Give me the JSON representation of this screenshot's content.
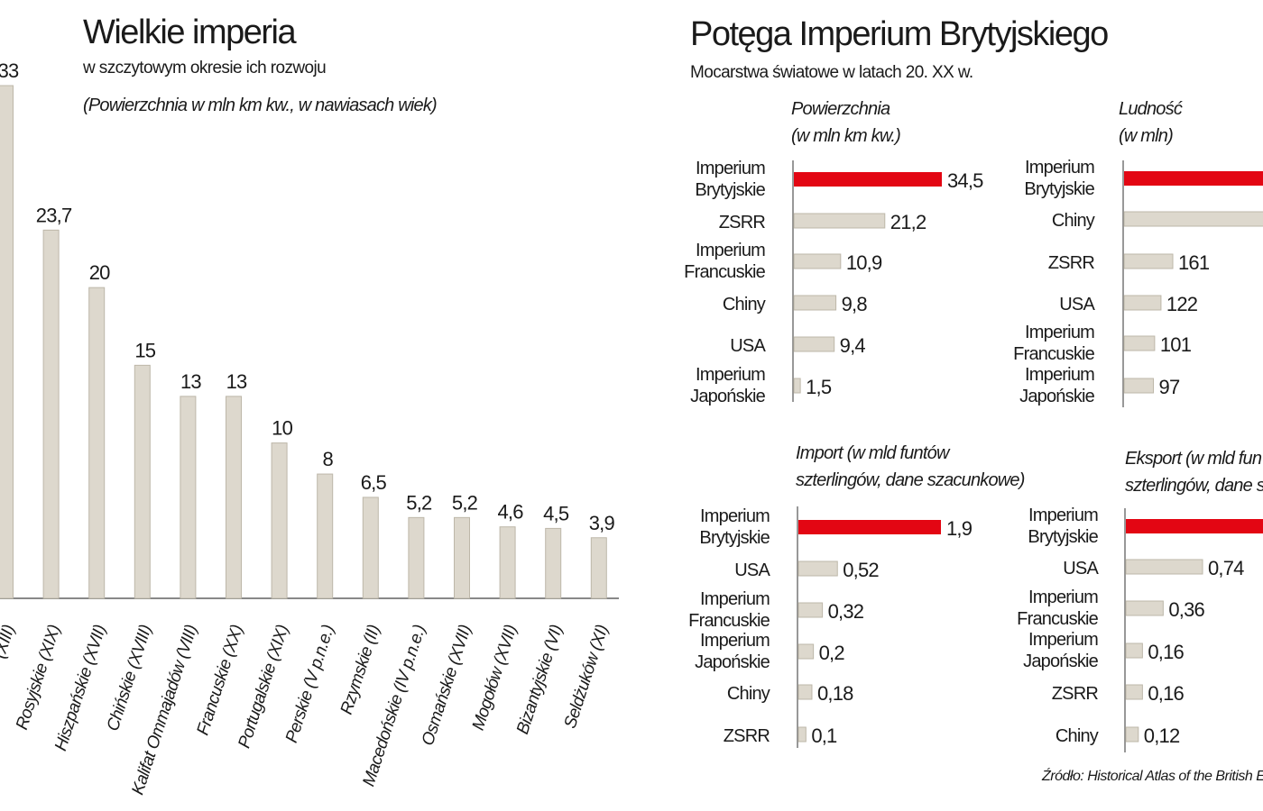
{
  "left": {
    "title": "Wielkie imperia",
    "subtitle": "w szczytowym okresie ich rozwoju",
    "note": "(Powierzchnia w mln km kw., w nawiasach wiek)"
  },
  "right": {
    "title": "Potęga Imperium Brytyjskiego",
    "subtitle": "Mocarstwa światowe w latach 20. XX w.",
    "source": "Źródło: Historical Atlas of the British E"
  },
  "colors": {
    "bar": "#ddd8cd",
    "bar_edge": "#bdb7a9",
    "highlight": "#e30613",
    "axis": "#777777"
  },
  "chart_data": [
    {
      "type": "bar",
      "orientation": "vertical",
      "categories": [
        "(XIII)",
        "Rosyjskie (XIX)",
        "Hiszpańskie (XVII)",
        "Chińskie (XVIII)",
        "Kalifat Ommajadów (VIII)",
        "Francuskie (XX)",
        "Portugalskie (XIX)",
        "Perskie (V p.n.e.)",
        "Rzymskie (II)",
        "Macedońskie (IV p.n.e.)",
        "Osmańskie (XVII)",
        "Mogołów (XVII)",
        "Bizantyjskie (VI)",
        "Seldżuków (XI)"
      ],
      "values": [
        33,
        23.7,
        20,
        15,
        13,
        13,
        10,
        8,
        6.5,
        5.2,
        5.2,
        4.6,
        4.5,
        3.9
      ],
      "labels": [
        "33",
        "23,7",
        "20",
        "15",
        "13",
        "13",
        "10",
        "8",
        "6,5",
        "5,2",
        "5,2",
        "4,6",
        "4,5",
        "3,9"
      ],
      "ylim": [
        0,
        33
      ],
      "grid": false
    },
    {
      "type": "bar",
      "orientation": "horizontal",
      "title": [
        "Powierzchnia",
        "(w mln km kw.)"
      ],
      "categories": [
        [
          "Imperium",
          "Brytyjskie"
        ],
        [
          "ZSRR"
        ],
        [
          "Imperium",
          "Francuskie"
        ],
        [
          "Chiny"
        ],
        [
          "USA"
        ],
        [
          "Imperium",
          "Japońskie"
        ]
      ],
      "values": [
        34.5,
        21.2,
        10.9,
        9.8,
        9.4,
        1.5
      ],
      "labels": [
        "34,5",
        "21,2",
        "10,9",
        "9,8",
        "9,4",
        "1,5"
      ],
      "highlight": 0
    },
    {
      "type": "bar",
      "orientation": "horizontal",
      "title": [
        "Ludność",
        "(w mln)"
      ],
      "categories": [
        [
          "Imperium",
          "Brytyjskie"
        ],
        [
          "Chiny"
        ],
        [
          "ZSRR"
        ],
        [
          "USA"
        ],
        [
          "Imperium",
          "Francuskie"
        ],
        [
          "Imperium",
          "Japońskie"
        ]
      ],
      "values": [
        null,
        null,
        161,
        122,
        101,
        97
      ],
      "labels": [
        "",
        "",
        "161",
        "122",
        "101",
        "97"
      ],
      "highlight": 0
    },
    {
      "type": "bar",
      "orientation": "horizontal",
      "title": [
        "Import (w mld funtów",
        "szterlingów, dane szacunkowe)"
      ],
      "categories": [
        [
          "Imperium",
          "Brytyjskie"
        ],
        [
          "USA"
        ],
        [
          "Imperium",
          "Francuskie"
        ],
        [
          "Imperium",
          "Japońskie"
        ],
        [
          "Chiny"
        ],
        [
          "ZSRR"
        ]
      ],
      "values": [
        1.9,
        0.52,
        0.32,
        0.2,
        0.18,
        0.1
      ],
      "labels": [
        "1,9",
        "0,52",
        "0,32",
        "0,2",
        "0,18",
        "0,1"
      ],
      "highlight": 0
    },
    {
      "type": "bar",
      "orientation": "horizontal",
      "title": [
        "Eksport (w mld fun",
        "szterlingów, dane s"
      ],
      "categories": [
        [
          "Imperium",
          "Brytyjskie"
        ],
        [
          "USA"
        ],
        [
          "Imperium",
          "Francuskie"
        ],
        [
          "Imperium",
          "Japońskie"
        ],
        [
          "ZSRR"
        ],
        [
          "Chiny"
        ]
      ],
      "values": [
        null,
        0.74,
        0.36,
        0.16,
        0.16,
        0.12
      ],
      "labels": [
        "",
        "0,74",
        "0,36",
        "0,16",
        "0,16",
        "0,12"
      ],
      "highlight": 0
    }
  ]
}
